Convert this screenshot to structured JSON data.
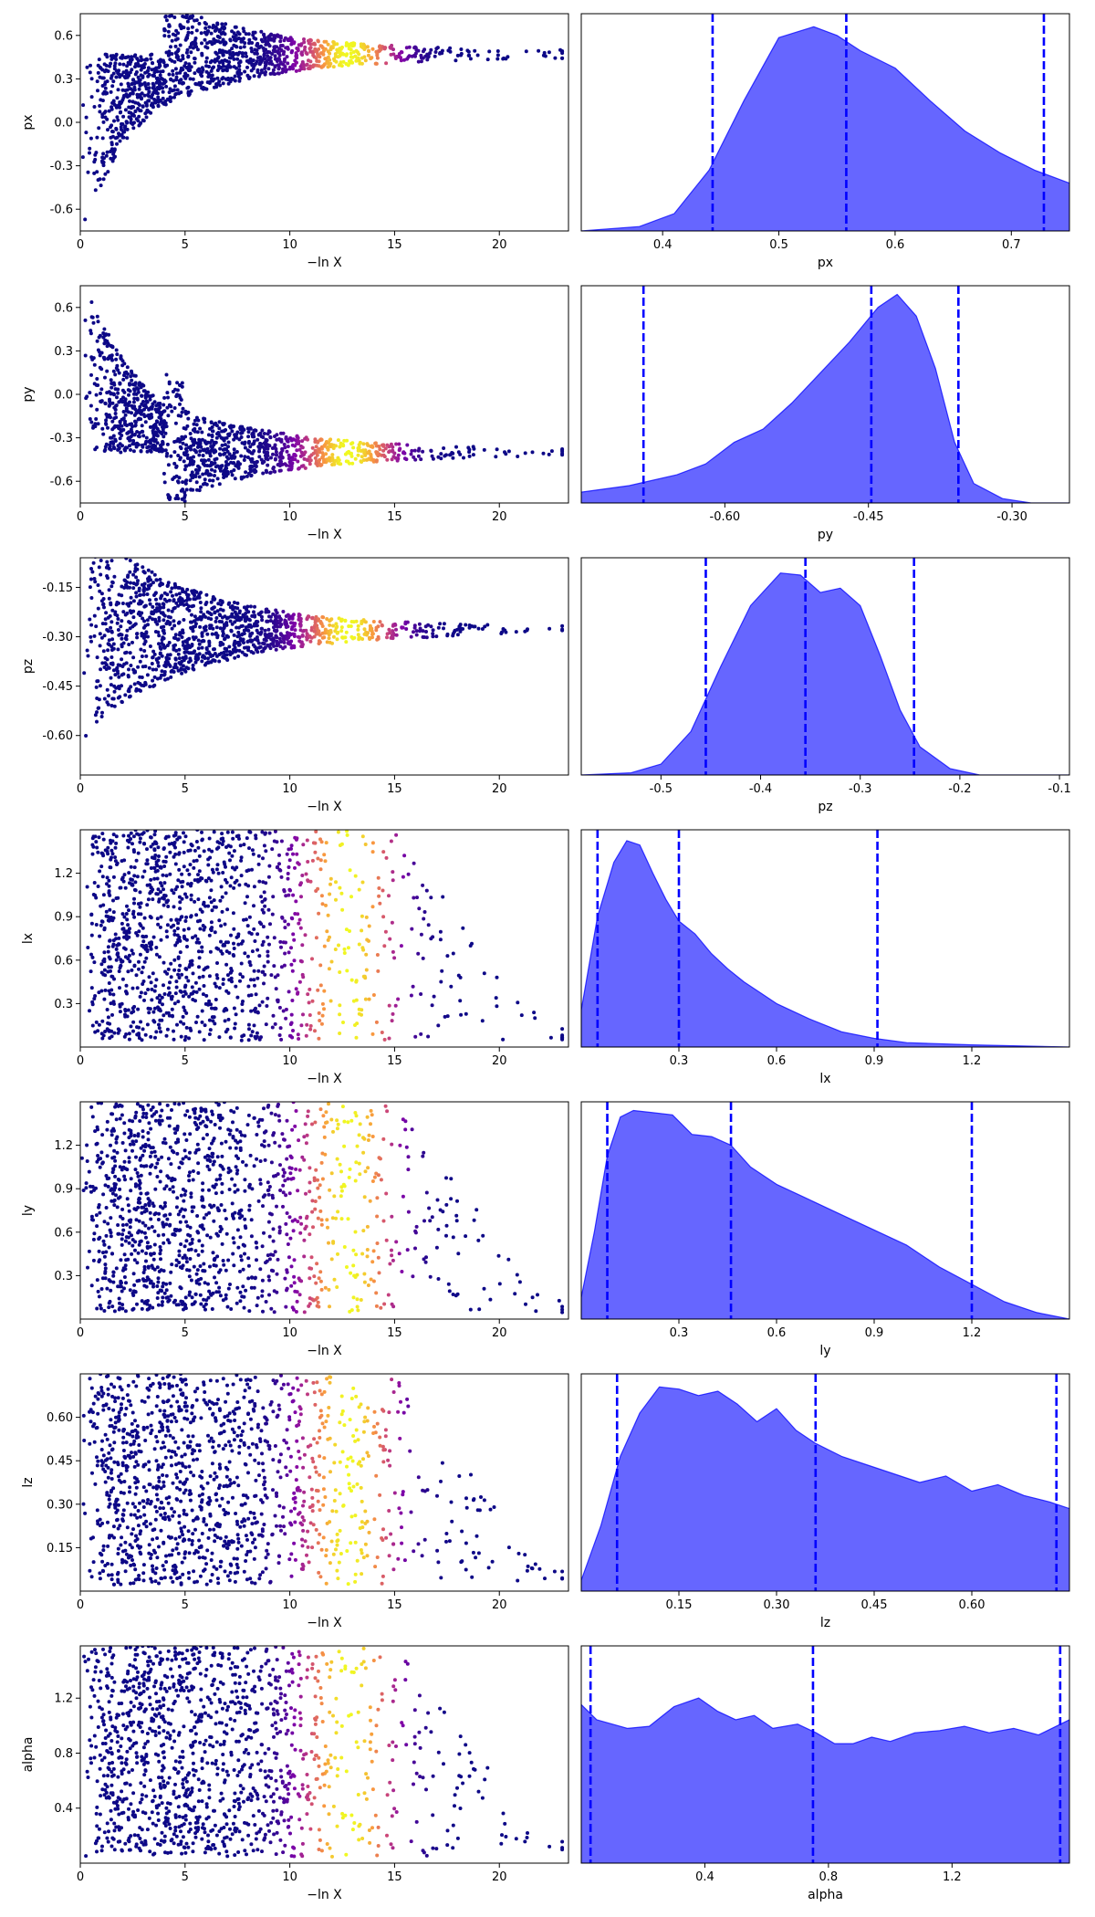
{
  "chart_data": {
    "type": "scatter",
    "title": "",
    "trace_xlabel": "−ln X",
    "trace_xticks": [
      0,
      5,
      10,
      15,
      20
    ],
    "trace_xlim": [
      0,
      23.3
    ],
    "colormap": "plasma",
    "density_color": "#0000ff",
    "quantile_line_color": "#0000ff",
    "params": [
      {
        "name": "px",
        "trace_ylim": [
          -0.75,
          0.75
        ],
        "trace_yticks": [
          "0.6",
          "0.3",
          "0.0",
          "-0.3",
          "-0.6"
        ],
        "trace_ytick_values": [
          0.6,
          0.3,
          0.0,
          -0.3,
          -0.6
        ],
        "converge_value": 0.47,
        "density_xlim": [
          0.33,
          0.75
        ],
        "density_xticks": [
          "0.4",
          "0.5",
          "0.6",
          "0.7"
        ],
        "density_xtick_values": [
          0.4,
          0.5,
          0.6,
          0.7
        ],
        "quantiles": [
          0.443,
          0.558,
          0.728
        ],
        "density": [
          [
            0.33,
            0.0
          ],
          [
            0.38,
            0.02
          ],
          [
            0.41,
            0.08
          ],
          [
            0.44,
            0.28
          ],
          [
            0.47,
            0.6
          ],
          [
            0.5,
            0.89
          ],
          [
            0.53,
            0.94
          ],
          [
            0.55,
            0.9
          ],
          [
            0.57,
            0.83
          ],
          [
            0.6,
            0.75
          ],
          [
            0.63,
            0.6
          ],
          [
            0.66,
            0.46
          ],
          [
            0.69,
            0.36
          ],
          [
            0.72,
            0.28
          ],
          [
            0.75,
            0.22
          ]
        ]
      },
      {
        "name": "py",
        "trace_ylim": [
          -0.75,
          0.75
        ],
        "trace_yticks": [
          "0.6",
          "0.3",
          "0.0",
          "-0.3",
          "-0.6"
        ],
        "trace_ytick_values": [
          0.6,
          0.3,
          0.0,
          -0.3,
          -0.6
        ],
        "converge_value": -0.4,
        "density_xlim": [
          -0.75,
          -0.24
        ],
        "density_xticks": [
          "-0.60",
          "-0.45",
          "-0.30"
        ],
        "density_xtick_values": [
          -0.6,
          -0.45,
          -0.3
        ],
        "quantiles": [
          -0.685,
          -0.447,
          -0.356
        ],
        "density": [
          [
            -0.75,
            0.05
          ],
          [
            -0.7,
            0.08
          ],
          [
            -0.65,
            0.13
          ],
          [
            -0.62,
            0.18
          ],
          [
            -0.59,
            0.28
          ],
          [
            -0.56,
            0.34
          ],
          [
            -0.53,
            0.46
          ],
          [
            -0.5,
            0.6
          ],
          [
            -0.47,
            0.74
          ],
          [
            -0.44,
            0.9
          ],
          [
            -0.42,
            0.96
          ],
          [
            -0.4,
            0.86
          ],
          [
            -0.38,
            0.62
          ],
          [
            -0.36,
            0.28
          ],
          [
            -0.34,
            0.09
          ],
          [
            -0.31,
            0.02
          ],
          [
            -0.28,
            0.0
          ],
          [
            -0.24,
            0.0
          ]
        ]
      },
      {
        "name": "pz",
        "trace_ylim": [
          -0.72,
          -0.06
        ],
        "trace_yticks": [
          "-0.15",
          "-0.30",
          "-0.45",
          "-0.60"
        ],
        "trace_ytick_values": [
          -0.15,
          -0.3,
          -0.45,
          -0.6
        ],
        "converge_value": -0.28,
        "density_xlim": [
          -0.58,
          -0.09
        ],
        "density_xticks": [
          "-0.5",
          "-0.4",
          "-0.3",
          "-0.2",
          "-0.1"
        ],
        "density_xtick_values": [
          -0.5,
          -0.4,
          -0.3,
          -0.2,
          -0.1
        ],
        "quantiles": [
          -0.455,
          -0.355,
          -0.246
        ],
        "density": [
          [
            -0.58,
            0.0
          ],
          [
            -0.53,
            0.01
          ],
          [
            -0.5,
            0.05
          ],
          [
            -0.47,
            0.2
          ],
          [
            -0.44,
            0.5
          ],
          [
            -0.41,
            0.78
          ],
          [
            -0.38,
            0.93
          ],
          [
            -0.36,
            0.92
          ],
          [
            -0.34,
            0.84
          ],
          [
            -0.32,
            0.86
          ],
          [
            -0.3,
            0.78
          ],
          [
            -0.28,
            0.55
          ],
          [
            -0.26,
            0.3
          ],
          [
            -0.24,
            0.13
          ],
          [
            -0.21,
            0.03
          ],
          [
            -0.18,
            0.0
          ],
          [
            -0.09,
            0.0
          ]
        ]
      },
      {
        "name": "lx",
        "trace_ylim": [
          0.0,
          1.5
        ],
        "trace_yticks": [
          "1.2",
          "0.9",
          "0.6",
          "0.3"
        ],
        "trace_ytick_values": [
          1.2,
          0.9,
          0.6,
          0.3
        ],
        "density_xlim": [
          0.0,
          1.5
        ],
        "density_xticks": [
          "0.3",
          "0.6",
          "0.9",
          "1.2"
        ],
        "density_xtick_values": [
          0.3,
          0.6,
          0.9,
          1.2
        ],
        "quantiles": [
          0.05,
          0.3,
          0.91
        ],
        "density": [
          [
            0.0,
            0.17
          ],
          [
            0.05,
            0.6
          ],
          [
            0.1,
            0.85
          ],
          [
            0.14,
            0.95
          ],
          [
            0.18,
            0.93
          ],
          [
            0.22,
            0.8
          ],
          [
            0.26,
            0.68
          ],
          [
            0.3,
            0.58
          ],
          [
            0.35,
            0.52
          ],
          [
            0.4,
            0.43
          ],
          [
            0.45,
            0.36
          ],
          [
            0.5,
            0.3
          ],
          [
            0.55,
            0.25
          ],
          [
            0.6,
            0.2
          ],
          [
            0.7,
            0.13
          ],
          [
            0.8,
            0.07
          ],
          [
            0.9,
            0.04
          ],
          [
            1.0,
            0.02
          ],
          [
            1.2,
            0.01
          ],
          [
            1.5,
            0.0
          ]
        ]
      },
      {
        "name": "ly",
        "trace_ylim": [
          0.0,
          1.5
        ],
        "trace_yticks": [
          "1.2",
          "0.9",
          "0.6",
          "0.3"
        ],
        "trace_ytick_values": [
          1.2,
          0.9,
          0.6,
          0.3
        ],
        "density_xlim": [
          0.0,
          1.5
        ],
        "density_xticks": [
          "0.3",
          "0.6",
          "0.9",
          "1.2"
        ],
        "density_xtick_values": [
          0.3,
          0.6,
          0.9,
          1.2
        ],
        "quantiles": [
          0.08,
          0.46,
          1.2
        ],
        "density": [
          [
            0.0,
            0.1
          ],
          [
            0.04,
            0.4
          ],
          [
            0.08,
            0.75
          ],
          [
            0.12,
            0.93
          ],
          [
            0.16,
            0.96
          ],
          [
            0.22,
            0.95
          ],
          [
            0.28,
            0.94
          ],
          [
            0.34,
            0.85
          ],
          [
            0.4,
            0.84
          ],
          [
            0.46,
            0.8
          ],
          [
            0.52,
            0.7
          ],
          [
            0.6,
            0.62
          ],
          [
            0.7,
            0.55
          ],
          [
            0.8,
            0.48
          ],
          [
            0.9,
            0.41
          ],
          [
            1.0,
            0.34
          ],
          [
            1.1,
            0.24
          ],
          [
            1.2,
            0.16
          ],
          [
            1.3,
            0.08
          ],
          [
            1.4,
            0.03
          ],
          [
            1.5,
            0.0
          ]
        ]
      },
      {
        "name": "lz",
        "trace_ylim": [
          0.0,
          0.75
        ],
        "trace_yticks": [
          "0.60",
          "0.45",
          "0.30",
          "0.15"
        ],
        "trace_ytick_values": [
          0.6,
          0.45,
          0.3,
          0.15
        ],
        "density_xlim": [
          0.0,
          0.75
        ],
        "density_xticks": [
          "0.15",
          "0.30",
          "0.45",
          "0.60"
        ],
        "density_xtick_values": [
          0.15,
          0.3,
          0.45,
          0.6
        ],
        "quantiles": [
          0.055,
          0.36,
          0.73
        ],
        "density": [
          [
            0.0,
            0.05
          ],
          [
            0.03,
            0.3
          ],
          [
            0.06,
            0.62
          ],
          [
            0.09,
            0.82
          ],
          [
            0.12,
            0.94
          ],
          [
            0.15,
            0.93
          ],
          [
            0.18,
            0.9
          ],
          [
            0.21,
            0.92
          ],
          [
            0.24,
            0.86
          ],
          [
            0.27,
            0.78
          ],
          [
            0.3,
            0.84
          ],
          [
            0.33,
            0.74
          ],
          [
            0.36,
            0.68
          ],
          [
            0.4,
            0.62
          ],
          [
            0.44,
            0.58
          ],
          [
            0.48,
            0.54
          ],
          [
            0.52,
            0.5
          ],
          [
            0.56,
            0.53
          ],
          [
            0.6,
            0.46
          ],
          [
            0.64,
            0.49
          ],
          [
            0.68,
            0.44
          ],
          [
            0.72,
            0.41
          ],
          [
            0.75,
            0.38
          ]
        ]
      },
      {
        "name": "alpha",
        "trace_ylim": [
          0.0,
          1.58
        ],
        "trace_yticks": [
          "1.2",
          "0.8",
          "0.4"
        ],
        "trace_ytick_values": [
          1.2,
          0.8,
          0.4
        ],
        "density_xlim": [
          0.0,
          1.58
        ],
        "density_xticks": [
          "0.4",
          "0.8",
          "1.2"
        ],
        "density_xtick_values": [
          0.4,
          0.8,
          1.2
        ],
        "quantiles": [
          0.03,
          0.75,
          1.55
        ],
        "density": [
          [
            0.0,
            0.73
          ],
          [
            0.05,
            0.66
          ],
          [
            0.1,
            0.64
          ],
          [
            0.15,
            0.62
          ],
          [
            0.22,
            0.63
          ],
          [
            0.3,
            0.72
          ],
          [
            0.38,
            0.76
          ],
          [
            0.44,
            0.7
          ],
          [
            0.5,
            0.66
          ],
          [
            0.56,
            0.68
          ],
          [
            0.62,
            0.62
          ],
          [
            0.7,
            0.64
          ],
          [
            0.76,
            0.6
          ],
          [
            0.82,
            0.55
          ],
          [
            0.88,
            0.55
          ],
          [
            0.94,
            0.58
          ],
          [
            1.0,
            0.56
          ],
          [
            1.08,
            0.6
          ],
          [
            1.16,
            0.61
          ],
          [
            1.24,
            0.63
          ],
          [
            1.32,
            0.6
          ],
          [
            1.4,
            0.62
          ],
          [
            1.48,
            0.59
          ],
          [
            1.58,
            0.66
          ]
        ]
      }
    ]
  }
}
